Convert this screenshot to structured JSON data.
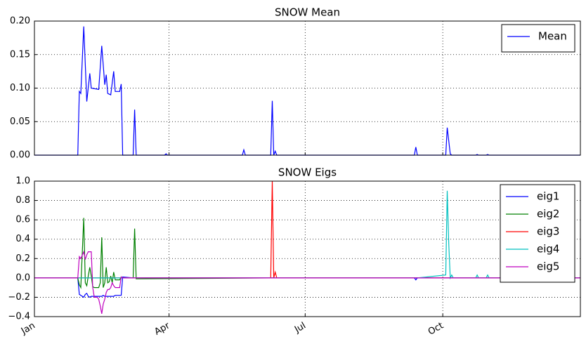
{
  "chart_data": [
    {
      "type": "line",
      "title": "SNOW Mean",
      "x": [
        0,
        29,
        30,
        31,
        33,
        35,
        37,
        38,
        43,
        45,
        47,
        48,
        49,
        51,
        53,
        54,
        57,
        58,
        59,
        66,
        67,
        68,
        87,
        88,
        89,
        139,
        140,
        141,
        158,
        159,
        160,
        161,
        162,
        254,
        255,
        256,
        275,
        276,
        278,
        279,
        295,
        296,
        297,
        302,
        303,
        304,
        365
      ],
      "series": [
        {
          "name": "Mean",
          "color": "#0000ff",
          "values": [
            0,
            0,
            0.095,
            0.092,
            0.192,
            0.08,
            0.122,
            0.1,
            0.098,
            0.163,
            0.105,
            0.12,
            0.092,
            0.09,
            0.125,
            0.095,
            0.095,
            0.106,
            0,
            0,
            0.068,
            0,
            0,
            0.002,
            0,
            0,
            0.008,
            0,
            0,
            0.081,
            0,
            0.006,
            0,
            0,
            0.012,
            0,
            0,
            0.041,
            0.002,
            0,
            0,
            0.001,
            0,
            0,
            0.001,
            0,
            0
          ]
        }
      ],
      "xlim": [
        0,
        365
      ],
      "xticks": [
        0,
        90,
        181,
        273
      ],
      "ylim": [
        0,
        0.2
      ],
      "yticks": [
        {
          "value": 0,
          "label": "0.00"
        },
        {
          "value": 0.05,
          "label": "0.05"
        },
        {
          "value": 0.1,
          "label": "0.10"
        },
        {
          "value": 0.15,
          "label": "0.15"
        },
        {
          "value": 0.2,
          "label": "0.20"
        }
      ],
      "grid": true,
      "legend": "upper-right"
    },
    {
      "type": "line",
      "title": "SNOW Eigs",
      "x": [
        0,
        29,
        30,
        31,
        33,
        34,
        35,
        36,
        37,
        38,
        39,
        40,
        42,
        43,
        44,
        45,
        46,
        47,
        48,
        49,
        50,
        51,
        52,
        53,
        54,
        57,
        58,
        59,
        66,
        67,
        68,
        158,
        159,
        160,
        161,
        162,
        254,
        255,
        256,
        275,
        276,
        277,
        278,
        279,
        280,
        295,
        296,
        297,
        302,
        303,
        304,
        365
      ],
      "series": [
        {
          "name": "eig1",
          "color": "#0000ff",
          "values": [
            0,
            0,
            -0.17,
            -0.18,
            -0.2,
            -0.17,
            -0.16,
            -0.19,
            -0.2,
            -0.19,
            -0.19,
            -0.19,
            -0.19,
            -0.19,
            -0.19,
            -0.19,
            -0.18,
            -0.19,
            -0.19,
            -0.19,
            -0.19,
            -0.19,
            -0.19,
            -0.19,
            -0.18,
            -0.18,
            -0.18,
            0.01,
            0,
            0,
            0,
            0,
            0,
            0,
            0,
            0,
            0,
            -0.02,
            0,
            0,
            0,
            0,
            0,
            0,
            0,
            0,
            0,
            0,
            0,
            0,
            0,
            0
          ]
        },
        {
          "name": "eig2",
          "color": "#008000",
          "values": [
            0,
            0,
            -0.07,
            -0.1,
            0.62,
            -0.05,
            -0.08,
            0.02,
            0.11,
            0.02,
            -0.09,
            -0.1,
            -0.1,
            -0.1,
            -0.05,
            0.42,
            -0.1,
            -0.05,
            0.11,
            -0.05,
            -0.04,
            0.02,
            -0.05,
            0.06,
            -0.02,
            -0.02,
            0.01,
            0,
            0,
            0.51,
            -0.01,
            0,
            0,
            0,
            0,
            0,
            0,
            0,
            0,
            0,
            0,
            0,
            0,
            0,
            0,
            0,
            0,
            0,
            0,
            0,
            0,
            0
          ]
        },
        {
          "name": "eig3",
          "color": "#ff0000",
          "values": [
            0,
            0,
            0,
            0,
            0,
            0,
            0,
            0,
            0,
            0,
            0,
            0,
            0,
            0,
            0,
            0,
            0,
            0,
            0,
            0,
            0,
            0,
            0,
            0,
            0,
            0,
            0,
            0,
            0,
            0,
            0,
            0,
            1.0,
            0,
            0.06,
            0,
            0,
            0,
            0,
            0,
            0,
            0,
            0,
            0,
            0,
            0,
            0,
            0,
            0,
            0,
            0,
            0
          ]
        },
        {
          "name": "eig4",
          "color": "#00bfbf",
          "values": [
            0,
            0,
            0,
            0,
            0,
            0,
            0,
            0,
            0,
            0,
            0,
            0,
            0,
            0,
            0,
            0,
            0,
            0,
            0,
            0,
            0,
            0,
            0,
            0,
            0,
            0,
            0,
            0,
            0,
            0,
            0,
            0,
            0,
            0,
            0,
            0,
            0,
            0,
            0,
            0.03,
            0.9,
            0.35,
            0,
            0.03,
            0,
            0,
            0.03,
            0,
            0,
            0.03,
            0,
            0
          ]
        },
        {
          "name": "eig5",
          "color": "#bf00bf",
          "values": [
            0,
            0,
            0.22,
            0.2,
            0.27,
            0.19,
            0.24,
            0.27,
            0.27,
            0.27,
            -0.1,
            -0.2,
            -0.2,
            -0.22,
            -0.29,
            -0.37,
            -0.27,
            -0.22,
            -0.15,
            -0.12,
            -0.12,
            -0.1,
            -0.05,
            -0.08,
            -0.1,
            -0.1,
            0.01,
            0,
            0,
            0,
            0,
            0,
            0,
            0,
            0,
            0,
            0,
            0,
            0,
            0,
            0,
            0,
            0,
            0,
            0,
            0,
            0,
            0,
            0,
            0,
            0,
            0
          ]
        }
      ],
      "xlim": [
        0,
        365
      ],
      "xticks": [
        {
          "value": 0,
          "label": "Jan"
        },
        {
          "value": 90,
          "label": "Apr"
        },
        {
          "value": 181,
          "label": "Jul"
        },
        {
          "value": 273,
          "label": "Oct"
        }
      ],
      "ylim": [
        -0.4,
        1.0
      ],
      "yticks": [
        {
          "value": -0.4,
          "label": "−0.4"
        },
        {
          "value": -0.2,
          "label": "−0.2"
        },
        {
          "value": 0,
          "label": "0.0"
        },
        {
          "value": 0.2,
          "label": "0.2"
        },
        {
          "value": 0.4,
          "label": "0.4"
        },
        {
          "value": 0.6,
          "label": "0.6"
        },
        {
          "value": 0.8,
          "label": "0.8"
        },
        {
          "value": 1.0,
          "label": "1.0"
        }
      ],
      "grid": true,
      "legend": "upper-right"
    }
  ]
}
